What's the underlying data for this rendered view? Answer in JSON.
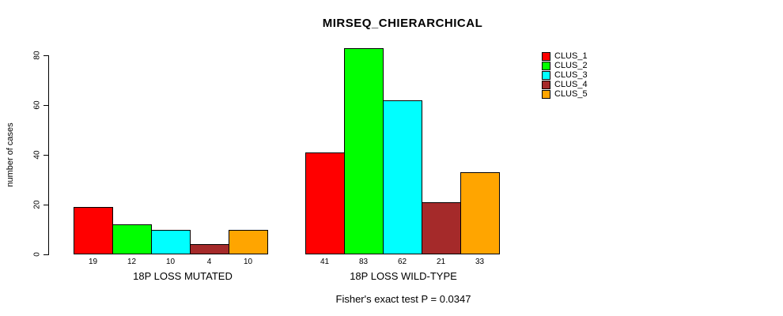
{
  "title": "MIRSEQ_CHIERARCHICAL",
  "annotation": "Fisher's exact test P = 0.0347",
  "y_axis": {
    "label": "number of cases",
    "ticks": [
      "0",
      "20",
      "40",
      "60",
      "80"
    ]
  },
  "groups": [
    {
      "label": "18P LOSS MUTATED"
    },
    {
      "label": "18P LOSS WILD-TYPE"
    }
  ],
  "legend": {
    "entries": [
      "CLUS_1",
      "CLUS_2",
      "CLUS_3",
      "CLUS_4",
      "CLUS_5"
    ]
  },
  "colors": {
    "clus_1": "#FF0000",
    "clus_2": "#00FF00",
    "clus_3": "#00FFFF",
    "clus_4": "#A52A2A",
    "clus_5": "#FFA500",
    "axis": "#000000"
  },
  "chart_data": {
    "type": "bar",
    "title": "MIRSEQ_CHIERARCHICAL",
    "categories": [
      "18P LOSS MUTATED",
      "18P LOSS WILD-TYPE"
    ],
    "series": [
      {
        "name": "CLUS_1",
        "color": "#FF0000",
        "values": [
          19,
          41
        ]
      },
      {
        "name": "CLUS_2",
        "color": "#00FF00",
        "values": [
          12,
          83
        ]
      },
      {
        "name": "CLUS_3",
        "color": "#00FFFF",
        "values": [
          10,
          62
        ]
      },
      {
        "name": "CLUS_4",
        "color": "#A52A2A",
        "values": [
          4,
          21
        ]
      },
      {
        "name": "CLUS_5",
        "color": "#FFA500",
        "values": [
          10,
          33
        ]
      }
    ],
    "xlabel": "",
    "ylabel": "number of cases",
    "ylim": [
      0,
      83
    ],
    "yticks": [
      0,
      20,
      40,
      60,
      80
    ],
    "bar_value_labels": true,
    "grid": false,
    "legend_position": "top-right",
    "annotation": "Fisher's exact test P = 0.0347"
  }
}
